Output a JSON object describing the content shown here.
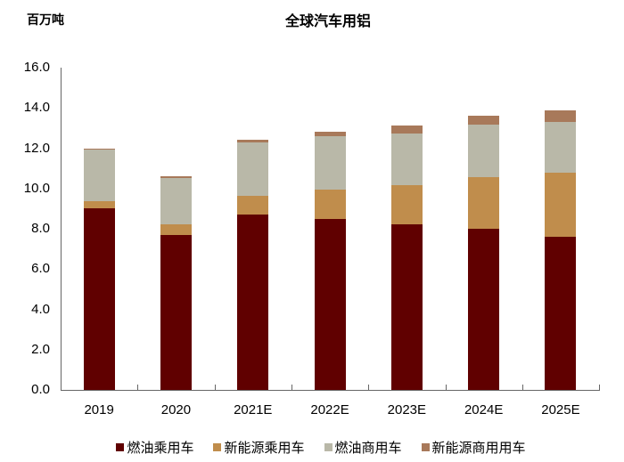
{
  "chart_data": {
    "type": "bar",
    "stacked": true,
    "title": "全球汽车用铝",
    "ylabel": "百万吨",
    "xlabel": "",
    "ylim": [
      0,
      16
    ],
    "yticks": [
      "0.0",
      "2.0",
      "4.0",
      "6.0",
      "8.0",
      "10.0",
      "12.0",
      "14.0",
      "16.0"
    ],
    "grid": false,
    "legend_position": "bottom",
    "categories": [
      "2019",
      "2020",
      "2021E",
      "2022E",
      "2023E",
      "2024E",
      "2025E"
    ],
    "series": [
      {
        "name": "燃油乘用车",
        "color": "#600000",
        "values": [
          9.0,
          7.7,
          8.7,
          8.5,
          8.2,
          8.0,
          7.6
        ]
      },
      {
        "name": "新能源乘用车",
        "color": "#C08D4C",
        "values": [
          0.35,
          0.5,
          0.95,
          1.45,
          1.95,
          2.55,
          3.2
        ]
      },
      {
        "name": "燃油商用车",
        "color": "#B9B8A8",
        "values": [
          2.6,
          2.3,
          2.65,
          2.65,
          2.6,
          2.6,
          2.5
        ]
      },
      {
        "name": "新能源商用用车",
        "color": "#A8795A",
        "values": [
          0.05,
          0.13,
          0.13,
          0.22,
          0.36,
          0.45,
          0.58
        ]
      }
    ]
  }
}
